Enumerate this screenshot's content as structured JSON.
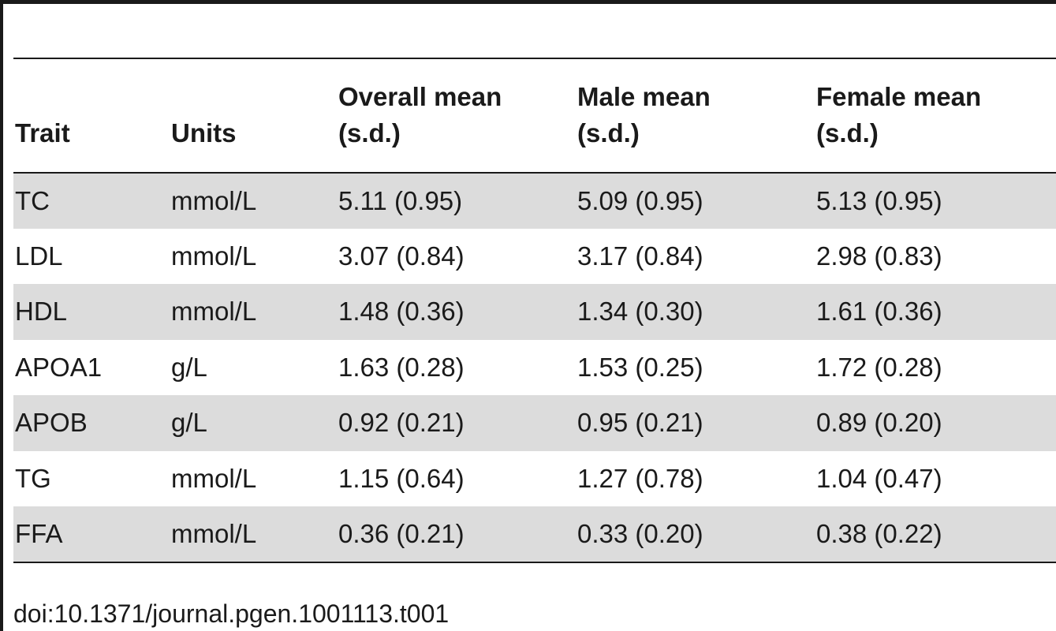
{
  "table": {
    "headers": [
      "Trait",
      "Units",
      "Overall mean (s.d.)",
      "Male mean (s.d.)",
      "Female mean (s.d.)"
    ],
    "rows": [
      [
        "TC",
        "mmol/L",
        "5.11 (0.95)",
        "5.09 (0.95)",
        "5.13 (0.95)"
      ],
      [
        "LDL",
        "mmol/L",
        "3.07 (0.84)",
        "3.17 (0.84)",
        "2.98 (0.83)"
      ],
      [
        "HDL",
        "mmol/L",
        "1.48 (0.36)",
        "1.34 (0.30)",
        "1.61 (0.36)"
      ],
      [
        "APOA1",
        "g/L",
        "1.63 (0.28)",
        "1.53 (0.25)",
        "1.72 (0.28)"
      ],
      [
        "APOB",
        "g/L",
        "0.92 (0.21)",
        "0.95 (0.21)",
        "0.89 (0.20)"
      ],
      [
        "TG",
        "mmol/L",
        "1.15 (0.64)",
        "1.27 (0.78)",
        "1.04 (0.47)"
      ],
      [
        "FFA",
        "mmol/L",
        "0.36 (0.21)",
        "0.33 (0.20)",
        "0.38 (0.22)"
      ]
    ]
  },
  "footer": {
    "doi": "doi:10.1371/journal.pgen.1001113.t001"
  },
  "colors": {
    "rule": "#1a1a1a",
    "stripe": "#dcdcdc",
    "background": "#ffffff"
  }
}
